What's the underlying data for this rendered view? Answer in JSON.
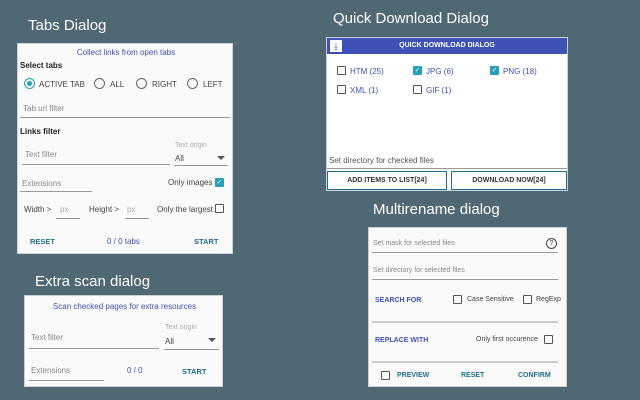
{
  "tabs_dialog": {
    "title": "Tabs Dialog",
    "header": "Collect links from open tabs",
    "select_tabs": "Select tabs",
    "radios": [
      {
        "label": "ACTIVE TAB",
        "checked": true
      },
      {
        "label": "ALL",
        "checked": false
      },
      {
        "label": "RIGHT",
        "checked": false
      },
      {
        "label": "LEFT",
        "checked": false
      }
    ],
    "tab_url_filter": "Tab url filter",
    "links_filter": "Links filter",
    "text_filter": "Text filter",
    "text_origin_label": "Text origin",
    "text_origin_value": "All",
    "extensions": "Extensions",
    "only_images": "Only images",
    "only_images_checked": true,
    "width_label": "Width >",
    "height_label": "Height >",
    "px": "px",
    "only_largest": "Only the largest",
    "only_largest_checked": false,
    "reset": "RESET",
    "count": "0 / 0 tabs",
    "start": "START"
  },
  "quick_download": {
    "title": "Quick Download Dialog",
    "header": "QUICK DOWNLOAD DIALOG",
    "header_icon": "download-icon",
    "types": [
      {
        "label": "HTM (25)",
        "checked": false
      },
      {
        "label": "JPG (6)",
        "checked": true
      },
      {
        "label": "PNG (18)",
        "checked": true
      },
      {
        "label": "XML (1)",
        "checked": false
      },
      {
        "label": "GIF (1)",
        "checked": false
      }
    ],
    "directory_placeholder": "Set directory for checked files",
    "add_items": "ADD ITEMS TO LIST[24]",
    "download_now": "DOWNLOAD NOW[24]"
  },
  "multirename": {
    "title": "Multirename dialog",
    "mask_placeholder": "Set mask for selected files",
    "help_icon": "?",
    "directory_placeholder": "Set directory for selected files",
    "search_for": "SEARCH FOR",
    "case_sensitive": "Case Sensitive",
    "regexp": "RegExp",
    "replace_with": "REPLACE WITH",
    "only_first": "Only first occurence",
    "preview": "PREVIEW",
    "reset": "RESET",
    "confirm": "CONFIRM"
  },
  "extra_scan": {
    "title": "Extra scan dialog",
    "header": "Scan checked pages for extra resources",
    "text_filter": "Text filter",
    "text_origin_label": "Text origin",
    "text_origin_value": "All",
    "extensions": "Extensions",
    "count": "0 / 0",
    "start": "START"
  }
}
